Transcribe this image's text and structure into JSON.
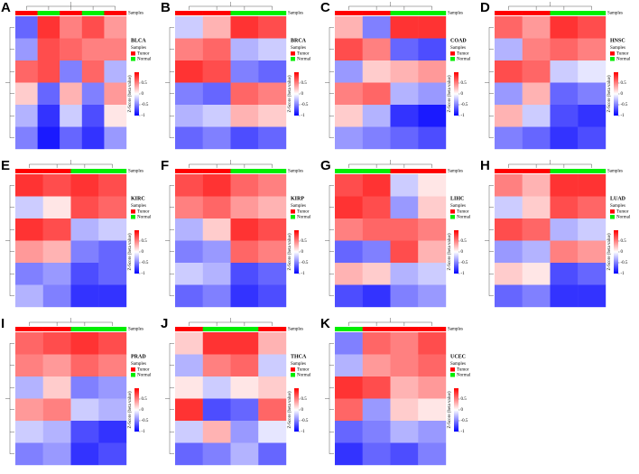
{
  "chart_data": [
    {
      "type": "heatmap",
      "panel": "A",
      "title": "BLCA",
      "annotation_label": "Samples",
      "legend_title": "Samples",
      "legend": [
        {
          "name": "Tumor",
          "color": "#ff0000"
        },
        {
          "name": "Normal",
          "color": "#00ee00"
        }
      ],
      "colorbar_label": "Z-Score (beta value)",
      "zlim": [
        -1,
        1
      ],
      "zticks": [
        0.5,
        0,
        -0.5,
        -1
      ],
      "colors": {
        "low": "#0000ff",
        "mid": "#ffffff",
        "high": "#ff0000"
      },
      "column_groups": [
        "Tumor",
        "Normal",
        "Tumor",
        "Normal",
        "Tumor"
      ],
      "values": [
        [
          -0.6,
          0.8,
          0.5,
          0.7,
          0.4
        ],
        [
          -0.4,
          0.7,
          0.6,
          0.5,
          0.5
        ],
        [
          0.6,
          0.7,
          -0.5,
          0.6,
          -0.3
        ],
        [
          0.2,
          -0.6,
          0.3,
          -0.5,
          0.4
        ],
        [
          -0.3,
          -0.8,
          -0.2,
          -0.7,
          0.1
        ],
        [
          -0.5,
          -0.9,
          -0.6,
          -0.8,
          -0.4
        ]
      ]
    },
    {
      "type": "heatmap",
      "panel": "B",
      "title": "BRCA",
      "annotation_label": "Samples",
      "legend_title": "Samples",
      "legend": [
        {
          "name": "Tumor",
          "color": "#ff0000"
        },
        {
          "name": "Normal",
          "color": "#00ee00"
        }
      ],
      "colorbar_label": "Z-Score (beta value)",
      "zlim": [
        -1,
        1
      ],
      "zticks": [
        0.5,
        0,
        -0.5,
        -1
      ],
      "colors": {
        "low": "#0000ff",
        "mid": "#ffffff",
        "high": "#ff0000"
      },
      "column_groups": [
        "Tumor",
        "Tumor",
        "Normal",
        "Normal"
      ],
      "values": [
        [
          -0.2,
          0.3,
          0.8,
          0.7
        ],
        [
          0.5,
          0.6,
          -0.3,
          -0.2
        ],
        [
          0.8,
          0.7,
          -0.5,
          -0.6
        ],
        [
          -0.5,
          -0.6,
          0.6,
          0.5
        ],
        [
          -0.3,
          -0.2,
          0.3,
          0.2
        ],
        [
          -0.6,
          -0.5,
          -0.7,
          -0.6
        ]
      ]
    },
    {
      "type": "heatmap",
      "panel": "C",
      "title": "COAD",
      "annotation_label": "Samples",
      "legend_title": "Samples",
      "legend": [
        {
          "name": "Tumor",
          "color": "#ff0000"
        },
        {
          "name": "Normal",
          "color": "#00ee00"
        }
      ],
      "colorbar_label": "Z-Score (beta value)",
      "zlim": [
        -1,
        1
      ],
      "zticks": [
        0.5,
        0,
        -0.5,
        -1
      ],
      "colors": {
        "low": "#0000ff",
        "mid": "#ffffff",
        "high": "#ff0000"
      },
      "column_groups": [
        "Tumor",
        "Tumor",
        "Normal",
        "Normal"
      ],
      "values": [
        [
          0.3,
          -0.5,
          0.8,
          0.8
        ],
        [
          0.7,
          0.5,
          -0.6,
          -0.7
        ],
        [
          -0.4,
          0.2,
          0.3,
          0.4
        ],
        [
          0.5,
          0.6,
          -0.3,
          -0.4
        ],
        [
          0.2,
          -0.3,
          -0.8,
          -0.9
        ],
        [
          -0.4,
          -0.5,
          -0.6,
          -0.7
        ]
      ]
    },
    {
      "type": "heatmap",
      "panel": "D",
      "title": "HNSC",
      "annotation_label": "Samples",
      "legend_title": "Samples",
      "legend": [
        {
          "name": "Tumor",
          "color": "#ff0000"
        },
        {
          "name": "Normal",
          "color": "#00ee00"
        }
      ],
      "colorbar_label": "Z-Score (beta value)",
      "zlim": [
        -1,
        1
      ],
      "zticks": [
        0.5,
        0,
        -0.5,
        -1
      ],
      "colors": {
        "low": "#0000ff",
        "mid": "#ffffff",
        "high": "#ff0000"
      },
      "column_groups": [
        "Tumor",
        "Tumor",
        "Normal",
        "Normal"
      ],
      "values": [
        [
          0.6,
          0.4,
          0.8,
          0.7
        ],
        [
          -0.3,
          0.5,
          0.6,
          0.5
        ],
        [
          0.7,
          0.6,
          -0.2,
          -0.1
        ],
        [
          -0.4,
          0.3,
          -0.6,
          -0.5
        ],
        [
          0.3,
          -0.2,
          -0.7,
          -0.8
        ],
        [
          -0.5,
          -0.6,
          -0.8,
          -0.7
        ]
      ]
    },
    {
      "type": "heatmap",
      "panel": "E",
      "title": "KIRC",
      "annotation_label": "Samples",
      "legend_title": "Samples",
      "legend": [
        {
          "name": "Tumor",
          "color": "#ff0000"
        },
        {
          "name": "Normal",
          "color": "#00ee00"
        }
      ],
      "colorbar_label": "Z-Score (beta value)",
      "zlim": [
        -1,
        1
      ],
      "zticks": [
        0.5,
        0,
        -0.5,
        -1
      ],
      "colors": {
        "low": "#0000ff",
        "mid": "#ffffff",
        "high": "#ff0000"
      },
      "column_groups": [
        "Tumor",
        "Tumor",
        "Normal",
        "Normal"
      ],
      "values": [
        [
          0.8,
          0.7,
          0.8,
          0.7
        ],
        [
          -0.2,
          0.1,
          0.7,
          0.6
        ],
        [
          0.8,
          0.7,
          -0.3,
          -0.2
        ],
        [
          0.4,
          0.3,
          -0.5,
          -0.6
        ],
        [
          -0.5,
          -0.4,
          -0.7,
          -0.6
        ],
        [
          -0.3,
          -0.5,
          -0.8,
          -0.8
        ]
      ]
    },
    {
      "type": "heatmap",
      "panel": "F",
      "title": "KIRP",
      "annotation_label": "Samples",
      "legend_title": "Samples",
      "legend": [
        {
          "name": "Tumor",
          "color": "#ff0000"
        },
        {
          "name": "Normal",
          "color": "#00ee00"
        }
      ],
      "colorbar_label": "Z-Score (beta value)",
      "zlim": [
        -1,
        1
      ],
      "zticks": [
        0.5,
        0,
        -0.5,
        -1
      ],
      "colors": {
        "low": "#0000ff",
        "mid": "#ffffff",
        "high": "#ff0000"
      },
      "column_groups": [
        "Tumor",
        "Tumor",
        "Normal",
        "Normal"
      ],
      "values": [
        [
          0.7,
          0.8,
          0.6,
          0.5
        ],
        [
          0.5,
          0.6,
          0.4,
          0.3
        ],
        [
          -0.3,
          0.2,
          0.8,
          0.7
        ],
        [
          -0.5,
          -0.4,
          0.6,
          0.5
        ],
        [
          -0.2,
          -0.3,
          -0.7,
          -0.6
        ],
        [
          -0.6,
          -0.5,
          -0.8,
          -0.7
        ]
      ]
    },
    {
      "type": "heatmap",
      "panel": "G",
      "title": "LIHC",
      "annotation_label": "Samples",
      "legend_title": "Samples",
      "legend": [
        {
          "name": "Tumor",
          "color": "#ff0000"
        },
        {
          "name": "Normal",
          "color": "#00ee00"
        }
      ],
      "colorbar_label": "Z-Score (beta value)",
      "zlim": [
        -1,
        1
      ],
      "zticks": [
        0.5,
        0,
        -0.5,
        -1
      ],
      "colors": {
        "low": "#0000ff",
        "mid": "#ffffff",
        "high": "#ff0000"
      },
      "column_groups": [
        "Normal",
        "Normal",
        "Tumor",
        "Tumor"
      ],
      "values": [
        [
          0.7,
          0.8,
          -0.2,
          0.1
        ],
        [
          0.8,
          0.7,
          -0.4,
          0.2
        ],
        [
          0.5,
          0.6,
          0.6,
          0.5
        ],
        [
          -0.6,
          -0.5,
          0.7,
          0.3
        ],
        [
          0.3,
          0.2,
          -0.3,
          -0.2
        ],
        [
          -0.7,
          -0.8,
          -0.5,
          -0.4
        ]
      ]
    },
    {
      "type": "heatmap",
      "panel": "H",
      "title": "LUAD",
      "annotation_label": "Samples",
      "legend_title": "Samples",
      "legend": [
        {
          "name": "Tumor",
          "color": "#ff0000"
        },
        {
          "name": "Normal",
          "color": "#00ee00"
        }
      ],
      "colorbar_label": "Z-Score (beta value)",
      "zlim": [
        -1,
        1
      ],
      "zticks": [
        0.5,
        0,
        -0.5,
        -1
      ],
      "colors": {
        "low": "#0000ff",
        "mid": "#ffffff",
        "high": "#ff0000"
      },
      "column_groups": [
        "Tumor",
        "Tumor",
        "Normal",
        "Normal"
      ],
      "values": [
        [
          0.5,
          0.3,
          0.8,
          0.8
        ],
        [
          -0.2,
          0.2,
          0.7,
          0.6
        ],
        [
          0.7,
          0.6,
          -0.3,
          -0.2
        ],
        [
          -0.4,
          -0.3,
          0.5,
          0.4
        ],
        [
          0.2,
          0.1,
          -0.7,
          -0.6
        ],
        [
          -0.6,
          -0.5,
          -0.8,
          -0.8
        ]
      ]
    },
    {
      "type": "heatmap",
      "panel": "I",
      "title": "PRAD",
      "annotation_label": "Samples",
      "legend_title": "Samples",
      "legend": [
        {
          "name": "Tumor",
          "color": "#ff0000"
        },
        {
          "name": "Normal",
          "color": "#00ee00"
        }
      ],
      "colorbar_label": "Z-Score (beta value)",
      "zlim": [
        -1,
        1
      ],
      "zticks": [
        0.5,
        0,
        -0.5,
        -1
      ],
      "colors": {
        "low": "#0000ff",
        "mid": "#ffffff",
        "high": "#ff0000"
      },
      "column_groups": [
        "Tumor",
        "Tumor",
        "Normal",
        "Normal"
      ],
      "values": [
        [
          0.6,
          0.7,
          0.8,
          0.7
        ],
        [
          0.5,
          0.4,
          0.6,
          0.5
        ],
        [
          -0.3,
          0.2,
          -0.5,
          -0.4
        ],
        [
          0.4,
          0.5,
          -0.2,
          -0.3
        ],
        [
          -0.2,
          -0.3,
          -0.7,
          -0.8
        ],
        [
          -0.5,
          -0.4,
          -0.8,
          -0.7
        ]
      ]
    },
    {
      "type": "heatmap",
      "panel": "J",
      "title": "THCA",
      "annotation_label": "Samples",
      "legend_title": "Samples",
      "legend": [
        {
          "name": "Tumor",
          "color": "#ff0000"
        },
        {
          "name": "Normal",
          "color": "#00ee00"
        }
      ],
      "colorbar_label": "Z-Score (beta value)",
      "zlim": [
        -1,
        1
      ],
      "zticks": [
        0.5,
        0,
        -0.5,
        -1
      ],
      "colors": {
        "low": "#0000ff",
        "mid": "#ffffff",
        "high": "#ff0000"
      },
      "column_groups": [
        "Tumor",
        "Normal",
        "Normal",
        "Tumor"
      ],
      "values": [
        [
          0.2,
          0.8,
          0.8,
          0.3
        ],
        [
          -0.3,
          0.5,
          0.6,
          -0.2
        ],
        [
          0.1,
          -0.2,
          0.1,
          0.2
        ],
        [
          0.8,
          -0.7,
          -0.6,
          0.6
        ],
        [
          -0.2,
          0.3,
          -0.4,
          -0.1
        ],
        [
          -0.6,
          -0.5,
          -0.3,
          -0.6
        ]
      ]
    },
    {
      "type": "heatmap",
      "panel": "K",
      "title": "UCEC",
      "annotation_label": "Samples",
      "legend_title": "Samples",
      "legend": [
        {
          "name": "Tumor",
          "color": "#ff0000"
        },
        {
          "name": "Normal",
          "color": "#00ee00"
        }
      ],
      "colorbar_label": "Z-Score (beta value)",
      "zlim": [
        -1,
        1
      ],
      "zticks": [
        0.5,
        0,
        -0.5,
        -1
      ],
      "colors": {
        "low": "#0000ff",
        "mid": "#ffffff",
        "high": "#ff0000"
      },
      "column_groups": [
        "Normal",
        "Tumor",
        "Tumor",
        "Tumor"
      ],
      "values": [
        [
          -0.5,
          0.6,
          0.5,
          0.7
        ],
        [
          -0.3,
          0.4,
          0.5,
          0.6
        ],
        [
          0.8,
          0.7,
          0.3,
          0.4
        ],
        [
          0.6,
          -0.4,
          0.2,
          0.1
        ],
        [
          -0.6,
          -0.5,
          -0.3,
          -0.4
        ],
        [
          -0.8,
          -0.6,
          -0.7,
          -0.5
        ]
      ]
    }
  ]
}
